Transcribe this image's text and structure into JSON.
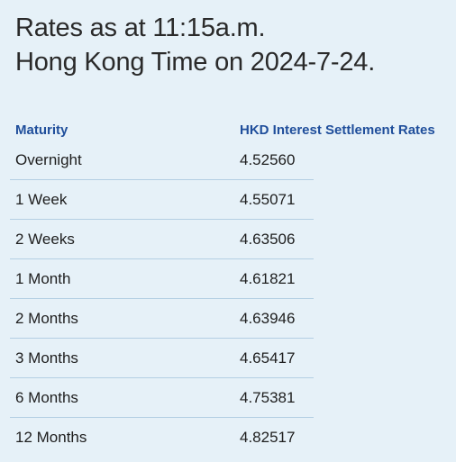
{
  "heading": {
    "line1": "Rates as at 11:15a.m.",
    "line2": "Hong Kong Time on 2024-7-24."
  },
  "table": {
    "headers": {
      "maturity": "Maturity",
      "rate": "HKD Interest Settlement Rates"
    },
    "rows": [
      {
        "term": "Overnight",
        "rate": "4.52560"
      },
      {
        "term": "1 Week",
        "rate": "4.55071"
      },
      {
        "term": "2 Weeks",
        "rate": "4.63506"
      },
      {
        "term": "1 Month",
        "rate": "4.61821"
      },
      {
        "term": "2 Months",
        "rate": "4.63946"
      },
      {
        "term": "3 Months",
        "rate": "4.65417"
      },
      {
        "term": "6 Months",
        "rate": "4.75381"
      },
      {
        "term": "12 Months",
        "rate": "4.82517"
      }
    ]
  },
  "colors": {
    "background": "#e6f1f8",
    "header_text": "#1f4e9b",
    "divider": "#b4cfe3"
  }
}
